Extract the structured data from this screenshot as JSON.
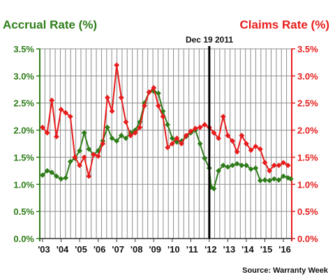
{
  "chart_data": {
    "type": "line",
    "title_left": "Accrual Rate (%)",
    "title_right": "Claims Rate (%)",
    "source": "Source: Warranty Week",
    "annotation": {
      "label": "Dec 19 2011",
      "x": 2012.0,
      "color": "#000000"
    },
    "x_ticks": [
      "'03",
      "'04",
      "'05",
      "'06",
      "'07",
      "'08",
      "'09",
      "'10",
      "'11",
      "'12",
      "'13",
      "'14",
      "'15",
      "'16"
    ],
    "xlim": [
      2002.85,
      2016.45
    ],
    "ylim": [
      0,
      3.5
    ],
    "y_ticks": [
      "0.0%",
      "0.5%",
      "1.0%",
      "1.5%",
      "2.0%",
      "2.5%",
      "3.0%",
      "3.5%"
    ],
    "grid": true,
    "series": [
      {
        "name": "Accrual Rate (%)",
        "axis": "left",
        "color": "#2f7d1a",
        "points": [
          [
            2003.0,
            1.17
          ],
          [
            2003.25,
            1.25
          ],
          [
            2003.5,
            1.22
          ],
          [
            2003.75,
            1.15
          ],
          [
            2004.0,
            1.1
          ],
          [
            2004.25,
            1.12
          ],
          [
            2004.5,
            1.42
          ],
          [
            2004.75,
            1.48
          ],
          [
            2005.0,
            1.62
          ],
          [
            2005.25,
            1.95
          ],
          [
            2005.5,
            1.65
          ],
          [
            2005.75,
            1.55
          ],
          [
            2006.0,
            1.62
          ],
          [
            2006.25,
            1.8
          ],
          [
            2006.5,
            2.05
          ],
          [
            2006.75,
            1.85
          ],
          [
            2007.0,
            1.8
          ],
          [
            2007.25,
            1.9
          ],
          [
            2007.5,
            1.85
          ],
          [
            2007.75,
            1.95
          ],
          [
            2008.0,
            2.0
          ],
          [
            2008.25,
            2.15
          ],
          [
            2008.5,
            2.5
          ],
          [
            2008.75,
            2.7
          ],
          [
            2009.0,
            2.72
          ],
          [
            2009.25,
            2.68
          ],
          [
            2009.5,
            2.35
          ],
          [
            2009.75,
            2.1
          ],
          [
            2010.0,
            1.85
          ],
          [
            2010.25,
            1.78
          ],
          [
            2010.5,
            1.8
          ],
          [
            2010.75,
            1.88
          ],
          [
            2011.0,
            1.95
          ],
          [
            2011.25,
            2.0
          ],
          [
            2011.5,
            1.75
          ],
          [
            2011.75,
            1.48
          ],
          [
            2012.0,
            1.3
          ],
          [
            2012.1,
            0.95
          ],
          [
            2012.25,
            0.92
          ],
          [
            2012.5,
            1.25
          ],
          [
            2012.75,
            1.35
          ],
          [
            2013.0,
            1.32
          ],
          [
            2013.25,
            1.35
          ],
          [
            2013.5,
            1.38
          ],
          [
            2013.75,
            1.35
          ],
          [
            2014.0,
            1.35
          ],
          [
            2014.25,
            1.28
          ],
          [
            2014.5,
            1.3
          ],
          [
            2014.75,
            1.07
          ],
          [
            2015.0,
            1.08
          ],
          [
            2015.25,
            1.07
          ],
          [
            2015.5,
            1.1
          ],
          [
            2015.75,
            1.08
          ],
          [
            2016.0,
            1.15
          ],
          [
            2016.25,
            1.12
          ],
          [
            2016.4,
            1.1
          ]
        ]
      },
      {
        "name": "Claims Rate (%)",
        "axis": "right",
        "color": "#e81c1c",
        "points": [
          [
            2003.0,
            2.05
          ],
          [
            2003.25,
            1.95
          ],
          [
            2003.5,
            2.55
          ],
          [
            2003.75,
            1.88
          ],
          [
            2004.0,
            2.38
          ],
          [
            2004.25,
            2.32
          ],
          [
            2004.5,
            2.25
          ],
          [
            2004.75,
            1.5
          ],
          [
            2005.0,
            1.35
          ],
          [
            2005.25,
            1.5
          ],
          [
            2005.5,
            1.15
          ],
          [
            2005.75,
            1.55
          ],
          [
            2006.0,
            1.52
          ],
          [
            2006.25,
            1.75
          ],
          [
            2006.5,
            2.6
          ],
          [
            2006.75,
            2.35
          ],
          [
            2007.0,
            3.2
          ],
          [
            2007.25,
            2.6
          ],
          [
            2007.5,
            2.15
          ],
          [
            2007.75,
            1.9
          ],
          [
            2008.0,
            1.95
          ],
          [
            2008.25,
            2.05
          ],
          [
            2008.5,
            2.45
          ],
          [
            2008.75,
            2.7
          ],
          [
            2009.0,
            2.78
          ],
          [
            2009.25,
            2.45
          ],
          [
            2009.5,
            2.25
          ],
          [
            2009.75,
            1.68
          ],
          [
            2010.0,
            1.75
          ],
          [
            2010.25,
            1.85
          ],
          [
            2010.5,
            1.75
          ],
          [
            2010.75,
            1.9
          ],
          [
            2011.0,
            1.98
          ],
          [
            2011.25,
            2.03
          ],
          [
            2011.5,
            2.05
          ],
          [
            2011.75,
            2.1
          ],
          [
            2012.0,
            2.05
          ],
          [
            2012.25,
            1.95
          ],
          [
            2012.5,
            1.85
          ],
          [
            2012.75,
            2.25
          ],
          [
            2013.0,
            1.9
          ],
          [
            2013.25,
            1.8
          ],
          [
            2013.5,
            1.6
          ],
          [
            2013.75,
            1.9
          ],
          [
            2014.0,
            1.75
          ],
          [
            2014.25,
            1.63
          ],
          [
            2014.5,
            1.7
          ],
          [
            2014.75,
            1.65
          ],
          [
            2015.0,
            1.4
          ],
          [
            2015.25,
            1.25
          ],
          [
            2015.5,
            1.35
          ],
          [
            2015.75,
            1.35
          ],
          [
            2016.0,
            1.4
          ],
          [
            2016.25,
            1.35
          ],
          [
            2016.5,
            1.43
          ],
          [
            2016.75,
            1.4
          ],
          [
            2017.0,
            1.35
          ]
        ]
      }
    ]
  }
}
